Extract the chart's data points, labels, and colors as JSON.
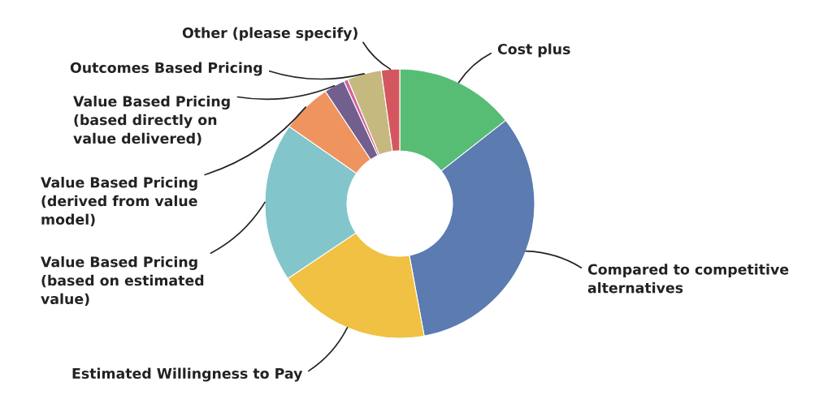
{
  "chart_data": {
    "type": "donut",
    "categories": [
      "Cost plus",
      "Compared to competitive\nalternatives",
      "Estimated Willingness to Pay",
      "Value Based Pricing\n(based on estimated\nvalue)",
      "Value Based Pricing\n(derived from value\nmodel)",
      "Value Based Pricing\n(based directly on\nvalue delivered)",
      null,
      "Outcomes Based Pricing",
      "Other (please specify)"
    ],
    "values": [
      14.4,
      32.7,
      18.5,
      19.1,
      6.0,
      2.5,
      0.5,
      4.1,
      2.2
    ],
    "colors": [
      "#57bd75",
      "#5b7bb1",
      "#f0c142",
      "#82c5ca",
      "#ef935f",
      "#725f8e",
      "#d2669e",
      "#c5b97f",
      "#d4575f"
    ],
    "legend": false
  }
}
